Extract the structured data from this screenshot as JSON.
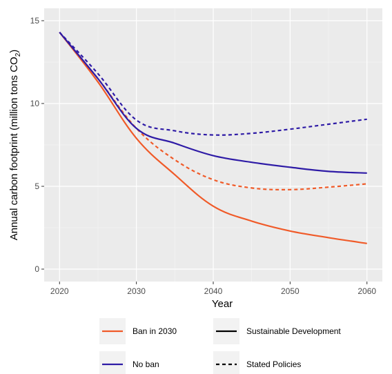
{
  "colors": {
    "panel": "#EBEBEB",
    "grid_major": "#FFFFFF",
    "grid_minor": "#F5F5F5",
    "ban": "#F05A28",
    "noban": "#2E1BA6",
    "tick_text": "#4D4D4D",
    "legend_key": "#F2F2F2"
  },
  "chart_data": {
    "type": "line",
    "xlabel": "Year",
    "ylabel_main": "Annual carbon footprint (million tons CO",
    "ylabel_sub": "2",
    "ylabel_close": ")",
    "xlim": [
      2020,
      2060
    ],
    "ylim": [
      0,
      15
    ],
    "x_ticks": [
      2020,
      2030,
      2040,
      2050,
      2060
    ],
    "x_tick_labels": [
      "2020",
      "2030",
      "2040",
      "2050",
      "2060"
    ],
    "y_ticks": [
      0,
      5,
      10,
      15
    ],
    "y_tick_labels": [
      "0",
      "5",
      "10",
      "15"
    ],
    "grid": true,
    "legend_position": "bottom",
    "series": [
      {
        "color_group": "ban",
        "linetype": "solid",
        "x": [
          2020,
          2025,
          2030,
          2035,
          2040,
          2045,
          2050,
          2055,
          2060
        ],
        "y": [
          14.3,
          11.3,
          7.9,
          5.7,
          3.8,
          2.9,
          2.3,
          1.9,
          1.55
        ]
      },
      {
        "color_group": "ban",
        "linetype": "dashed",
        "x": [
          2020,
          2025,
          2030,
          2035,
          2040,
          2045,
          2050,
          2055,
          2060
        ],
        "y": [
          14.3,
          11.5,
          8.5,
          6.6,
          5.4,
          4.9,
          4.8,
          4.95,
          5.15
        ]
      },
      {
        "color_group": "noban",
        "linetype": "solid",
        "x": [
          2020,
          2025,
          2030,
          2035,
          2040,
          2045,
          2050,
          2055,
          2060
        ],
        "y": [
          14.3,
          11.5,
          8.5,
          7.6,
          6.85,
          6.45,
          6.15,
          5.9,
          5.8
        ]
      },
      {
        "color_group": "noban",
        "linetype": "dashed",
        "x": [
          2020,
          2025,
          2030,
          2035,
          2040,
          2045,
          2050,
          2055,
          2060
        ],
        "y": [
          14.3,
          11.8,
          9.0,
          8.35,
          8.1,
          8.2,
          8.45,
          8.75,
          9.05
        ]
      }
    ],
    "legend": [
      {
        "label": "Ban in 2030",
        "color_group": "ban",
        "linetype": "solid"
      },
      {
        "label": "Sustainable Development",
        "color_group": "black",
        "linetype": "solid"
      },
      {
        "label": "No ban",
        "color_group": "noban",
        "linetype": "solid"
      },
      {
        "label": "Stated Policies",
        "color_group": "black",
        "linetype": "dashed"
      }
    ]
  }
}
